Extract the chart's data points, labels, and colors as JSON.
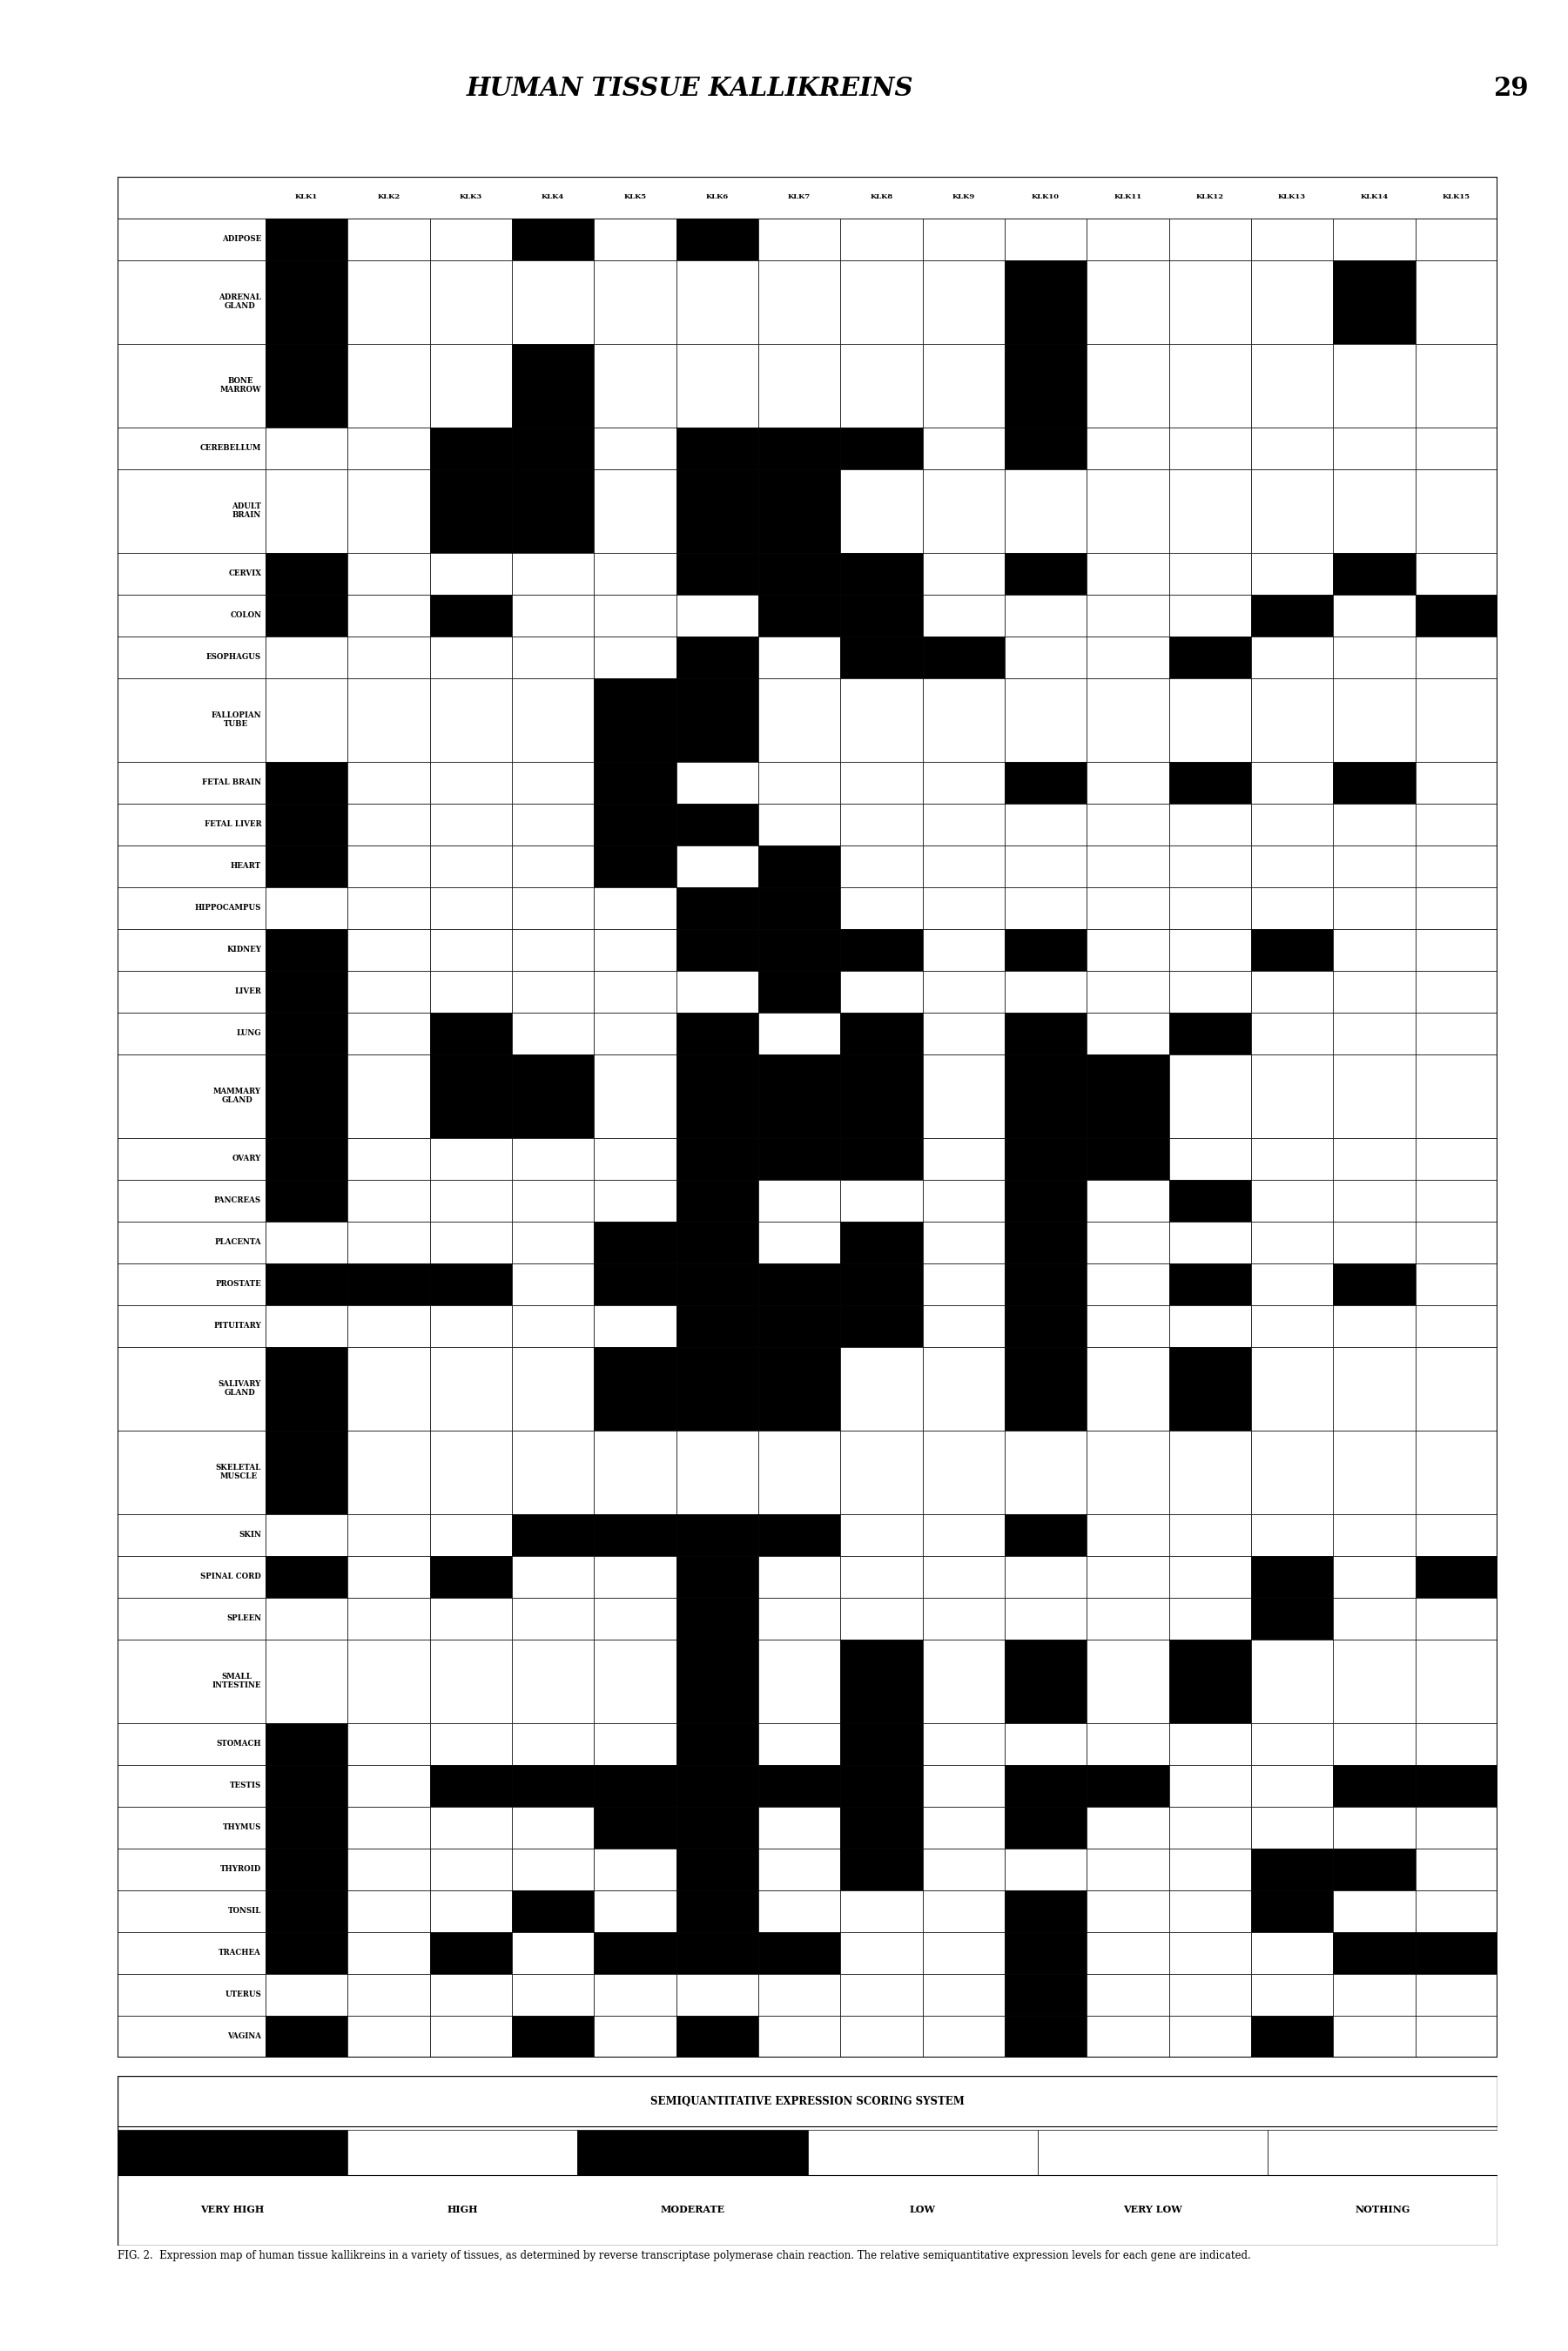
{
  "title": "HUMAN TISSUE KALLIKREINS",
  "page_number": "29",
  "columns": [
    "KLK1",
    "KLK2",
    "KLK3",
    "KLK4",
    "KLK5",
    "KLK6",
    "KLK7",
    "KLK8",
    "KLK9",
    "KLK10",
    "KLK11",
    "KLK12",
    "KLK13",
    "KLK14",
    "KLK15"
  ],
  "rows": [
    "ADIPOSE",
    "ADRENAL\nGLAND",
    "BONE\nMARROW",
    "CEREBELLUM",
    "ADULT\nBRAIN",
    "CERVIX",
    "COLON",
    "ESOPHAGUS",
    "FALLOPIAN\nTUBE",
    "FETAL BRAIN",
    "FETAL LIVER",
    "HEART",
    "HIPPOCAMPUS",
    "KIDNEY",
    "LIVER",
    "LUNG",
    "MAMMARY\nGLAND",
    "OVARY",
    "PANCREAS",
    "PLACENTA",
    "PROSTATE",
    "PITUITARY",
    "SALIVARY\nGLAND",
    "SKELETAL\nMUSCLE",
    "SKIN",
    "SPINAL CORD",
    "SPLEEN",
    "SMALL\nINTESTINE",
    "STOMACH",
    "TESTIS",
    "THYMUS",
    "THYROID",
    "TONSIL",
    "TRACHEA",
    "UTERUS",
    "VAGINA"
  ],
  "row_heights": [
    1,
    2,
    2,
    1,
    2,
    1,
    1,
    1,
    2,
    1,
    1,
    1,
    1,
    1,
    1,
    1,
    2,
    1,
    1,
    1,
    1,
    1,
    2,
    2,
    1,
    1,
    1,
    2,
    1,
    1,
    1,
    1,
    1,
    1,
    1,
    1
  ],
  "expression_rows": [
    [
      4,
      0,
      0,
      4,
      0,
      4,
      0,
      0,
      0,
      0,
      0,
      0,
      0,
      0,
      0
    ],
    [
      4,
      0,
      0,
      0,
      0,
      0,
      0,
      0,
      0,
      4,
      0,
      0,
      0,
      4,
      0
    ],
    [
      4,
      0,
      0,
      4,
      0,
      0,
      0,
      0,
      0,
      4,
      0,
      0,
      0,
      0,
      0
    ],
    [
      0,
      0,
      4,
      4,
      0,
      4,
      4,
      4,
      0,
      4,
      0,
      0,
      0,
      0,
      0
    ],
    [
      0,
      0,
      4,
      4,
      0,
      4,
      4,
      0,
      0,
      0,
      0,
      0,
      0,
      0,
      0
    ],
    [
      4,
      0,
      0,
      0,
      0,
      4,
      4,
      4,
      0,
      4,
      0,
      0,
      0,
      4,
      0
    ],
    [
      4,
      0,
      4,
      0,
      0,
      0,
      4,
      4,
      0,
      0,
      0,
      0,
      4,
      0,
      4
    ],
    [
      0,
      0,
      0,
      0,
      0,
      4,
      0,
      4,
      4,
      0,
      0,
      4,
      0,
      0,
      0
    ],
    [
      0,
      0,
      0,
      0,
      4,
      4,
      0,
      0,
      0,
      0,
      0,
      0,
      0,
      0,
      0
    ],
    [
      4,
      0,
      0,
      0,
      4,
      0,
      0,
      0,
      0,
      4,
      0,
      4,
      0,
      4,
      0
    ],
    [
      4,
      0,
      0,
      0,
      4,
      4,
      0,
      0,
      0,
      0,
      0,
      0,
      0,
      0,
      0
    ],
    [
      4,
      0,
      0,
      0,
      4,
      0,
      4,
      0,
      0,
      0,
      0,
      0,
      0,
      0,
      0
    ],
    [
      0,
      0,
      0,
      0,
      0,
      4,
      4,
      0,
      0,
      0,
      0,
      0,
      0,
      0,
      0
    ],
    [
      4,
      0,
      0,
      0,
      0,
      4,
      4,
      4,
      0,
      4,
      0,
      0,
      4,
      0,
      0
    ],
    [
      4,
      0,
      0,
      0,
      0,
      0,
      4,
      0,
      0,
      0,
      0,
      0,
      0,
      0,
      0
    ],
    [
      4,
      0,
      4,
      0,
      0,
      4,
      0,
      4,
      0,
      4,
      0,
      4,
      0,
      0,
      0
    ],
    [
      4,
      0,
      4,
      4,
      0,
      4,
      4,
      4,
      0,
      4,
      4,
      0,
      0,
      0,
      0
    ],
    [
      4,
      0,
      0,
      0,
      0,
      4,
      4,
      4,
      0,
      4,
      4,
      0,
      0,
      0,
      0
    ],
    [
      4,
      0,
      0,
      0,
      0,
      4,
      0,
      0,
      0,
      4,
      0,
      4,
      0,
      0,
      0
    ],
    [
      0,
      0,
      0,
      0,
      4,
      4,
      0,
      4,
      0,
      4,
      0,
      0,
      0,
      0,
      0
    ],
    [
      4,
      4,
      4,
      0,
      4,
      4,
      4,
      4,
      0,
      4,
      0,
      4,
      0,
      4,
      0
    ],
    [
      0,
      0,
      0,
      0,
      0,
      4,
      4,
      4,
      0,
      4,
      0,
      0,
      0,
      0,
      0
    ],
    [
      4,
      0,
      0,
      0,
      4,
      4,
      4,
      0,
      0,
      4,
      0,
      4,
      0,
      0,
      0
    ],
    [
      4,
      0,
      0,
      0,
      0,
      0,
      0,
      0,
      0,
      0,
      0,
      0,
      0,
      0,
      0
    ],
    [
      0,
      0,
      0,
      4,
      4,
      4,
      4,
      0,
      0,
      4,
      0,
      0,
      0,
      0,
      0
    ],
    [
      4,
      0,
      4,
      0,
      0,
      4,
      0,
      0,
      0,
      0,
      0,
      0,
      4,
      0,
      4
    ],
    [
      0,
      0,
      0,
      0,
      0,
      4,
      0,
      0,
      0,
      0,
      0,
      0,
      4,
      0,
      0
    ],
    [
      0,
      0,
      0,
      0,
      0,
      4,
      0,
      4,
      0,
      4,
      0,
      4,
      0,
      0,
      0
    ],
    [
      4,
      0,
      0,
      0,
      0,
      4,
      0,
      4,
      0,
      0,
      0,
      0,
      0,
      0,
      0
    ],
    [
      4,
      0,
      4,
      4,
      4,
      4,
      4,
      4,
      0,
      4,
      4,
      0,
      0,
      4,
      4
    ],
    [
      4,
      0,
      0,
      0,
      4,
      4,
      0,
      4,
      0,
      4,
      0,
      0,
      0,
      0,
      0
    ],
    [
      4,
      0,
      0,
      0,
      0,
      4,
      0,
      4,
      0,
      0,
      0,
      0,
      4,
      4,
      0
    ],
    [
      4,
      0,
      0,
      4,
      0,
      4,
      0,
      0,
      0,
      4,
      0,
      0,
      4,
      0,
      0
    ],
    [
      4,
      0,
      4,
      0,
      4,
      4,
      4,
      0,
      0,
      4,
      0,
      0,
      0,
      4,
      4
    ],
    [
      0,
      0,
      0,
      0,
      0,
      0,
      0,
      0,
      0,
      4,
      0,
      0,
      0,
      0,
      0
    ],
    [
      4,
      0,
      0,
      4,
      0,
      4,
      0,
      0,
      0,
      4,
      0,
      0,
      4,
      0,
      0
    ]
  ],
  "legend_title": "SEMIQUANTITATIVE EXPRESSION SCORING SYSTEM",
  "legend_labels": [
    "VERY HIGH",
    "HIGH",
    "MODERATE",
    "LOW",
    "VERY LOW",
    "NOTHING"
  ],
  "legend_colors": [
    "black",
    "white",
    "black",
    "white",
    "white",
    "white"
  ],
  "caption_fig": "FIG. 2.",
  "caption_text": "  Expression map of human tissue kallikreins in a variety of tissues, as determined by reverse transcriptase polymerase chain reaction. The relative semiquantitative expression levels for each gene are indicated."
}
